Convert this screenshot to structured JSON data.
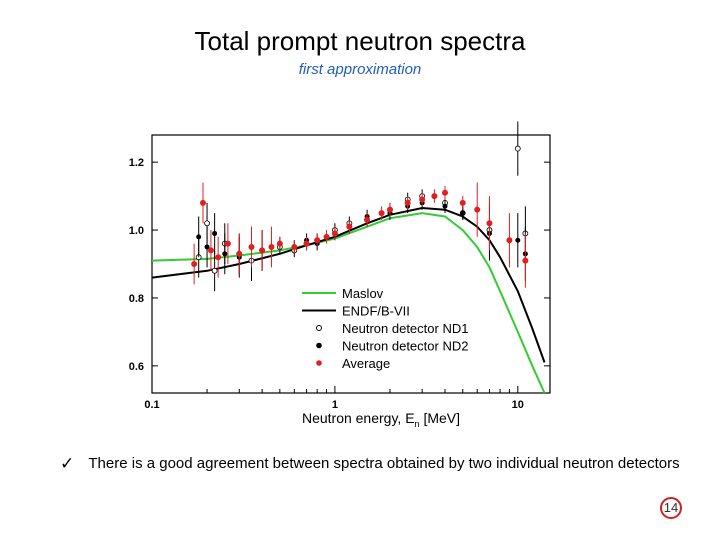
{
  "slide": {
    "title": "Total prompt neutron spectra",
    "subtitle": "first approximation",
    "bullet_text": "There is a good agreement between spectra obtained by two individual neutron detectors",
    "bullet_icon": "checkmark-icon",
    "page_number": "14",
    "colors": {
      "subtitle": "#1f5fbf",
      "page_circle": "#d42020"
    }
  },
  "chart_data": {
    "type": "scatter",
    "x_scale": "log",
    "xlim": [
      0.1,
      15
    ],
    "ylim": [
      0.52,
      1.28
    ],
    "xticks": [
      0.1,
      1,
      10
    ],
    "xtick_labels": [
      "0.1",
      "1",
      "10"
    ],
    "yticks": [
      0.6,
      0.8,
      1.0,
      1.2
    ],
    "ytick_labels": [
      "0.6",
      "0.8",
      "1.0",
      "1.2"
    ],
    "xlabel": "Neutron energy, E",
    "xlabel_sub": "n",
    "xlabel_unit": " [MeV]",
    "legend_position": "bottom-right",
    "curves": [
      {
        "name": "Maslov",
        "color": "#33cc33",
        "x": [
          0.1,
          0.2,
          0.3,
          0.5,
          0.7,
          1,
          1.5,
          2,
          3,
          4,
          5,
          6,
          7,
          8,
          10,
          12,
          14
        ],
        "y": [
          0.91,
          0.915,
          0.925,
          0.94,
          0.955,
          0.975,
          1.01,
          1.035,
          1.05,
          1.04,
          1.0,
          0.95,
          0.89,
          0.82,
          0.7,
          0.6,
          0.52
        ]
      },
      {
        "name": "ENDF/B-VII",
        "color": "#000000",
        "x": [
          0.1,
          0.2,
          0.3,
          0.5,
          0.7,
          1,
          1.5,
          2,
          3,
          4,
          5,
          6,
          7,
          8,
          10,
          12,
          14
        ],
        "y": [
          0.86,
          0.88,
          0.9,
          0.93,
          0.955,
          0.98,
          1.02,
          1.045,
          1.065,
          1.06,
          1.04,
          1.01,
          0.97,
          0.92,
          0.82,
          0.71,
          0.61
        ]
      }
    ],
    "series": [
      {
        "name": "Neutron detector ND1",
        "marker": "open-circle",
        "color": "#000000",
        "x": [
          0.18,
          0.2,
          0.22,
          0.25,
          0.3,
          0.35,
          0.4,
          0.5,
          0.6,
          0.7,
          0.8,
          1.0,
          1.2,
          1.5,
          2.0,
          2.5,
          3.0,
          4.0,
          5.0,
          7.0,
          10.0,
          11.0
        ],
        "y": [
          0.92,
          1.02,
          0.88,
          0.96,
          0.93,
          0.91,
          0.94,
          0.95,
          0.94,
          0.96,
          0.97,
          1.0,
          1.02,
          1.03,
          1.06,
          1.09,
          1.1,
          1.08,
          1.05,
          1.0,
          1.24,
          0.99
        ]
      },
      {
        "name": "Neutron detector ND2",
        "marker": "filled-circle",
        "color": "#000000",
        "x": [
          0.18,
          0.2,
          0.22,
          0.25,
          0.3,
          0.35,
          0.4,
          0.5,
          0.6,
          0.7,
          0.8,
          1.0,
          1.2,
          1.5,
          2.0,
          2.5,
          3.0,
          4.0,
          5.0,
          7.0,
          10.0,
          11.0
        ],
        "y": [
          0.98,
          0.95,
          0.99,
          0.93,
          0.92,
          0.95,
          0.94,
          0.96,
          0.95,
          0.97,
          0.96,
          0.99,
          1.01,
          1.04,
          1.05,
          1.07,
          1.08,
          1.07,
          1.05,
          0.99,
          0.97,
          0.93
        ]
      },
      {
        "name": "Average",
        "marker": "filled-circle",
        "color": "#e02020",
        "x": [
          0.17,
          0.19,
          0.21,
          0.23,
          0.26,
          0.3,
          0.35,
          0.4,
          0.45,
          0.5,
          0.6,
          0.7,
          0.8,
          0.9,
          1.0,
          1.2,
          1.5,
          1.8,
          2.0,
          2.5,
          3.0,
          3.5,
          4.0,
          5.0,
          6.0,
          7.0,
          9.0,
          11.0
        ],
        "y": [
          0.9,
          1.08,
          0.94,
          0.92,
          0.96,
          0.93,
          0.95,
          0.94,
          0.95,
          0.96,
          0.95,
          0.96,
          0.97,
          0.98,
          0.99,
          1.01,
          1.03,
          1.05,
          1.06,
          1.08,
          1.09,
          1.1,
          1.11,
          1.08,
          1.06,
          1.02,
          0.97,
          0.91
        ]
      }
    ]
  }
}
